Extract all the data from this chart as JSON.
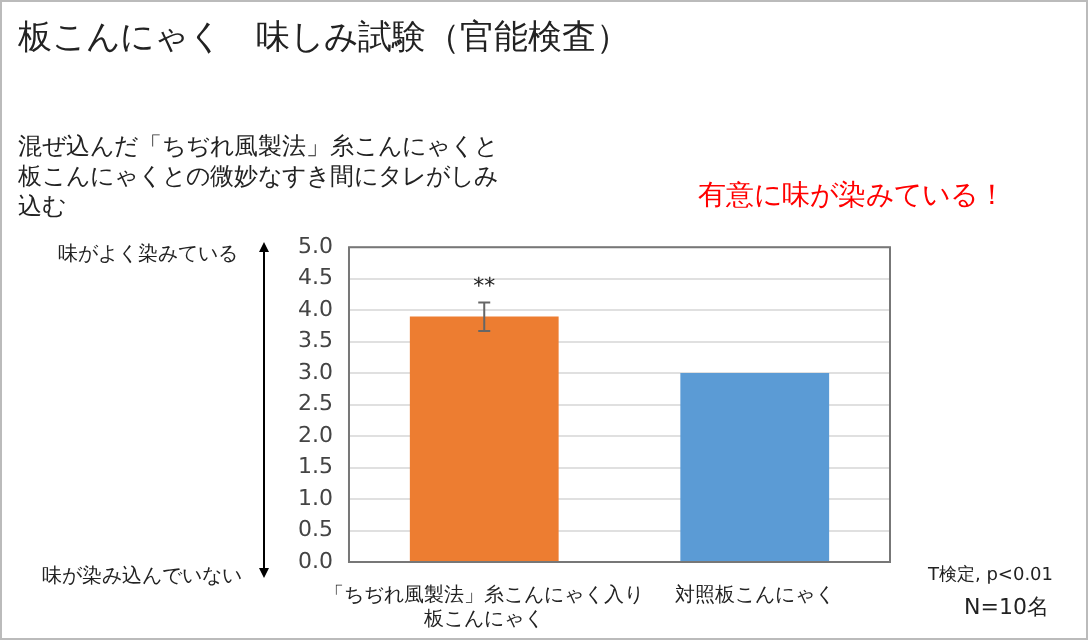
{
  "chart_data": {
    "type": "bar",
    "title": "板こんにゃく　味しみ試験（官能検査）",
    "subtitle": "混ぜ込んだ「ちぢれ風製法」糸こんにゃくと板こんにゃくとの微妙なすき間にタレがしみ込む",
    "categories": [
      "「ちぢれ風製法」糸こんにゃく入り板こんにゃく",
      "対照板こんにゃく"
    ],
    "values": [
      3.9,
      3.0
    ],
    "colors": [
      "#ed7d31",
      "#5b9bd5"
    ],
    "errors": [
      [
        3.67,
        4.12
      ],
      null
    ],
    "ylim": [
      0,
      5
    ],
    "yticks": [
      {
        "value": 0,
        "label": "0.0"
      },
      {
        "value": 0.5,
        "label": "0.5"
      },
      {
        "value": 1,
        "label": "1.0"
      },
      {
        "value": 1.5,
        "label": "1.5"
      },
      {
        "value": 2,
        "label": "2.0"
      },
      {
        "value": 2.5,
        "label": "2.5"
      },
      {
        "value": 3,
        "label": "3.0"
      },
      {
        "value": 3.5,
        "label": "3.5"
      },
      {
        "value": 4,
        "label": "4.0"
      },
      {
        "value": 4.5,
        "label": "4.5"
      },
      {
        "value": 5,
        "label": "5.0"
      }
    ],
    "grid": "y",
    "annotations": [
      "有意に味が染みている！",
      "味がよく染みている",
      "味が染み込んでいない",
      "T検定, p<0.01",
      "N=10名",
      {
        "text": "**",
        "x": "「ちぢれ風製法」糸こんにゃく入り板こんにゃく",
        "y": 4.12
      }
    ]
  }
}
